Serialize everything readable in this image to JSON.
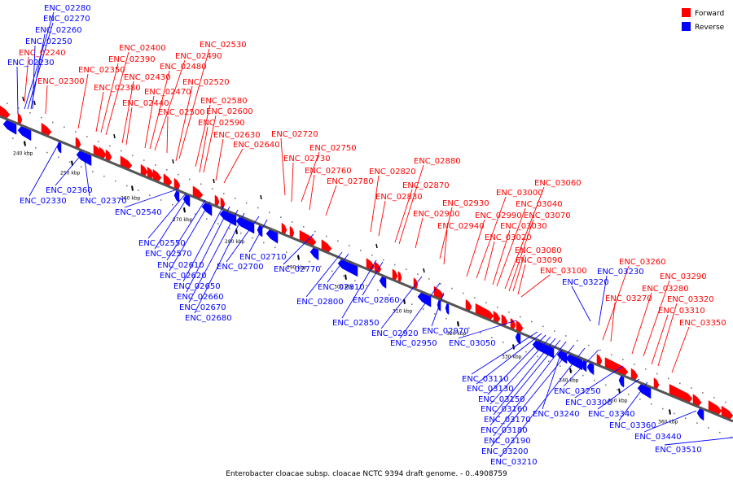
{
  "legend": {
    "forward_label": "Forward",
    "reverse_label": "Reverse",
    "forward_color": "#ff0000",
    "reverse_color": "#0000ff"
  },
  "caption": "Enterobacter cloacae subsp. cloacae NCTC 9394 draft genome. - 0..4908759",
  "scale_labels": [
    "240 kbp",
    "250 kbp",
    "260 kbp",
    "270 kbp",
    "280 kbp",
    "290 kbp",
    "300 kbp",
    "310 kbp",
    "320 kbp",
    "330 kbp",
    "340 kbp",
    "350 kbp",
    "360 kbp"
  ],
  "forward_genes": [
    "ENC_02240",
    "ENC_02300",
    "ENC_02350",
    "ENC_02380",
    "ENC_02390",
    "ENC_02400",
    "ENC_02430",
    "ENC_02440",
    "ENC_02470",
    "ENC_02480",
    "ENC_02490",
    "ENC_02500",
    "ENC_02520",
    "ENC_02530",
    "ENC_02580",
    "ENC_02590",
    "ENC_02600",
    "ENC_02630",
    "ENC_02640",
    "ENC_02720",
    "ENC_02730",
    "ENC_02750",
    "ENC_02760",
    "ENC_02780",
    "ENC_02820",
    "ENC_02830",
    "ENC_02870",
    "ENC_02880",
    "ENC_02900",
    "ENC_02930",
    "ENC_02940",
    "ENC_02990",
    "ENC_03000",
    "ENC_03020",
    "ENC_03030",
    "ENC_03040",
    "ENC_03060",
    "ENC_03070",
    "ENC_03080",
    "ENC_03090",
    "ENC_03100",
    "ENC_03260",
    "ENC_03270",
    "ENC_03280",
    "ENC_03290",
    "ENC_03310",
    "ENC_03320",
    "ENC_03350"
  ],
  "reverse_genes": [
    "ENC_02280",
    "ENC_02270",
    "ENC_02260",
    "ENC_02250",
    "ENC_02230",
    "ENC_02330",
    "ENC_02360",
    "ENC_02370",
    "ENC_02540",
    "ENC_02550",
    "ENC_02570",
    "ENC_02610",
    "ENC_02620",
    "ENC_02650",
    "ENC_02660",
    "ENC_02670",
    "ENC_02680",
    "ENC_02700",
    "ENC_02710",
    "ENC_02770",
    "ENC_02800",
    "ENC_02810",
    "ENC_02850",
    "ENC_02860",
    "ENC_02920",
    "ENC_02950",
    "ENC_02970",
    "ENC_03050",
    "ENC_03110",
    "ENC_03130",
    "ENC_03150",
    "ENC_03160",
    "ENC_03170",
    "ENC_03180",
    "ENC_03190",
    "ENC_03200",
    "ENC_03210",
    "ENC_03220",
    "ENC_03230",
    "ENC_03240",
    "ENC_03250",
    "ENC_03300",
    "ENC_03340",
    "ENC_03360",
    "ENC_03440",
    "ENC_03510"
  ]
}
